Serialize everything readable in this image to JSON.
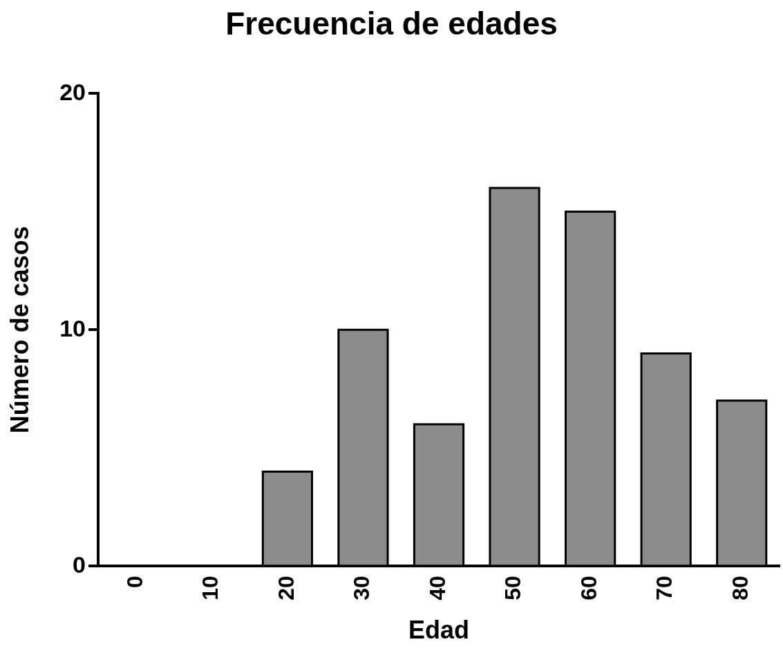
{
  "chart_data": {
    "type": "bar",
    "title": "Frecuencia de edades",
    "xlabel": "Edad",
    "ylabel": "Número de casos",
    "categories": [
      "0",
      "10",
      "20",
      "30",
      "40",
      "50",
      "60",
      "70",
      "80"
    ],
    "values": [
      0,
      0,
      4,
      10,
      6,
      16,
      15,
      9,
      7
    ],
    "color": "#8c8c8c",
    "ylim": [
      0,
      20
    ],
    "yticks": [
      0,
      10,
      20
    ],
    "grid": false,
    "legend": false
  }
}
